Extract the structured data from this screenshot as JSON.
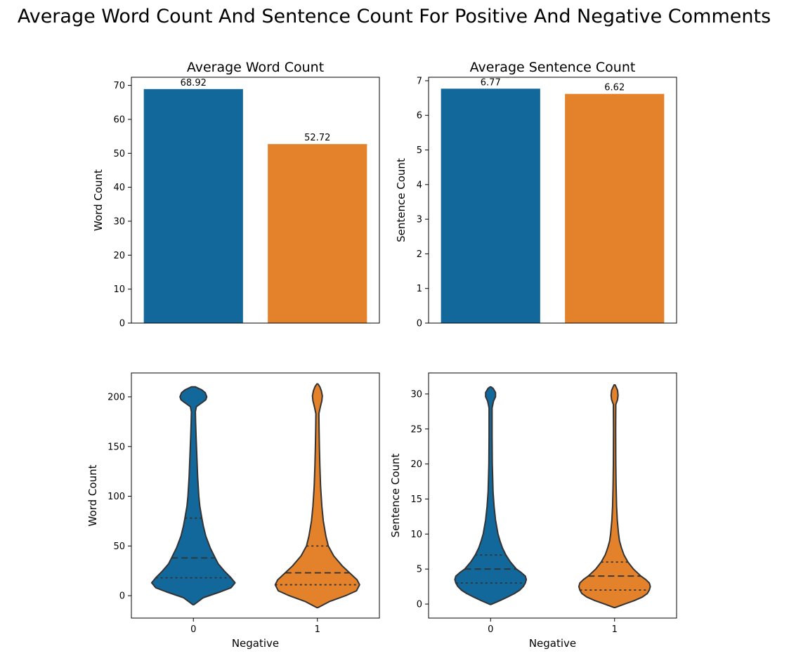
{
  "figure": {
    "suptitle": "Average Word Count And Sentence Count For Positive And Negative Comments",
    "colors": {
      "negative_0": "#12689a",
      "negative_1": "#e3822b",
      "violin_edge": "#333333"
    }
  },
  "chart_data": [
    {
      "type": "bar",
      "title": "Average Word Count",
      "xlabel": "",
      "ylabel": "Word Count",
      "categories": [
        "0",
        "1"
      ],
      "values": [
        68.92,
        52.72
      ],
      "value_labels": [
        "68.92",
        "52.72"
      ],
      "ylim": [
        0,
        72.4
      ],
      "yticks": [
        0,
        10,
        20,
        30,
        40,
        50,
        60,
        70
      ],
      "show_xticks": false
    },
    {
      "type": "bar",
      "title": "Average Sentence Count",
      "xlabel": "",
      "ylabel": "Sentence Count",
      "categories": [
        "0",
        "1"
      ],
      "values": [
        6.77,
        6.62
      ],
      "value_labels": [
        "6.77",
        "6.62"
      ],
      "ylim": [
        0,
        7.1
      ],
      "yticks": [
        0,
        1,
        2,
        3,
        4,
        5,
        6,
        7
      ],
      "show_xticks": false
    },
    {
      "type": "violin",
      "title": "",
      "xlabel": "Negative",
      "ylabel": "Word Count",
      "categories": [
        "0",
        "1"
      ],
      "ylim": [
        -22.5,
        224
      ],
      "yticks": [
        0,
        50,
        100,
        150,
        200
      ],
      "show_xticks": true,
      "violins": [
        {
          "category": "0",
          "quartiles": [
            18,
            38,
            78
          ],
          "profile": [
            [
              -9,
              0.01
            ],
            [
              -2,
              0.2
            ],
            [
              4,
              0.55
            ],
            [
              8,
              0.76
            ],
            [
              13,
              0.84
            ],
            [
              18,
              0.76
            ],
            [
              25,
              0.62
            ],
            [
              32,
              0.5
            ],
            [
              38,
              0.44
            ],
            [
              48,
              0.34
            ],
            [
              60,
              0.25
            ],
            [
              70,
              0.2
            ],
            [
              78,
              0.17
            ],
            [
              90,
              0.13
            ],
            [
              100,
              0.11
            ],
            [
              120,
              0.085
            ],
            [
              140,
              0.07
            ],
            [
              160,
              0.055
            ],
            [
              175,
              0.045
            ],
            [
              185,
              0.04
            ],
            [
              190,
              0.06
            ],
            [
              194,
              0.17
            ],
            [
              197,
              0.25
            ],
            [
              200,
              0.27
            ],
            [
              204,
              0.24
            ],
            [
              207,
              0.17
            ],
            [
              210,
              0.04
            ]
          ]
        },
        {
          "category": "1",
          "quartiles": [
            11,
            23,
            50
          ],
          "profile": [
            [
              -12,
              0.01
            ],
            [
              -6,
              0.24
            ],
            [
              0,
              0.57
            ],
            [
              5,
              0.79
            ],
            [
              11,
              0.85
            ],
            [
              16,
              0.8
            ],
            [
              23,
              0.65
            ],
            [
              30,
              0.5
            ],
            [
              40,
              0.33
            ],
            [
              50,
              0.22
            ],
            [
              60,
              0.17
            ],
            [
              75,
              0.12
            ],
            [
              90,
              0.09
            ],
            [
              110,
              0.065
            ],
            [
              130,
              0.05
            ],
            [
              150,
              0.04
            ],
            [
              170,
              0.033
            ],
            [
              183,
              0.03
            ],
            [
              190,
              0.06
            ],
            [
              196,
              0.09
            ],
            [
              201,
              0.1
            ],
            [
              206,
              0.08
            ],
            [
              210,
              0.05
            ],
            [
              213,
              0.01
            ]
          ]
        }
      ]
    },
    {
      "type": "violin",
      "title": "",
      "xlabel": "Negative",
      "ylabel": "Sentence Count",
      "categories": [
        "0",
        "1"
      ],
      "ylim": [
        -2.0,
        33.0
      ],
      "yticks": [
        0,
        5,
        10,
        15,
        20,
        25,
        30
      ],
      "show_xticks": true,
      "violins": [
        {
          "category": "0",
          "quartiles": [
            3,
            5,
            7
          ],
          "profile": [
            [
              -0.05,
              0.01
            ],
            [
              0.5,
              0.19
            ],
            [
              1,
              0.34
            ],
            [
              1.5,
              0.48
            ],
            [
              2,
              0.59
            ],
            [
              2.5,
              0.66
            ],
            [
              3,
              0.7
            ],
            [
              3.5,
              0.72
            ],
            [
              4,
              0.7
            ],
            [
              4.5,
              0.62
            ],
            [
              5,
              0.52
            ],
            [
              6,
              0.4
            ],
            [
              7,
              0.31
            ],
            [
              8,
              0.24
            ],
            [
              9,
              0.19
            ],
            [
              10,
              0.15
            ],
            [
              12,
              0.1
            ],
            [
              14,
              0.07
            ],
            [
              16,
              0.05
            ],
            [
              20,
              0.035
            ],
            [
              24,
              0.03
            ],
            [
              28,
              0.03
            ],
            [
              29,
              0.06
            ],
            [
              29.6,
              0.1
            ],
            [
              30.2,
              0.1
            ],
            [
              30.8,
              0.05
            ],
            [
              31,
              0.01
            ]
          ]
        },
        {
          "category": "1",
          "quartiles": [
            2,
            4,
            6
          ],
          "profile": [
            [
              -0.5,
              0.01
            ],
            [
              0,
              0.2
            ],
            [
              0.5,
              0.4
            ],
            [
              1,
              0.56
            ],
            [
              1.5,
              0.66
            ],
            [
              2,
              0.7
            ],
            [
              2.5,
              0.72
            ],
            [
              3,
              0.7
            ],
            [
              3.5,
              0.63
            ],
            [
              4,
              0.53
            ],
            [
              5,
              0.38
            ],
            [
              6,
              0.27
            ],
            [
              7,
              0.19
            ],
            [
              8,
              0.14
            ],
            [
              9,
              0.1
            ],
            [
              10,
              0.08
            ],
            [
              12,
              0.055
            ],
            [
              14,
              0.04
            ],
            [
              17,
              0.03
            ],
            [
              20,
              0.025
            ],
            [
              25,
              0.022
            ],
            [
              28.5,
              0.025
            ],
            [
              29.2,
              0.06
            ],
            [
              29.8,
              0.07
            ],
            [
              30.5,
              0.06
            ],
            [
              31,
              0.03
            ],
            [
              31.3,
              0.01
            ]
          ]
        }
      ]
    }
  ]
}
